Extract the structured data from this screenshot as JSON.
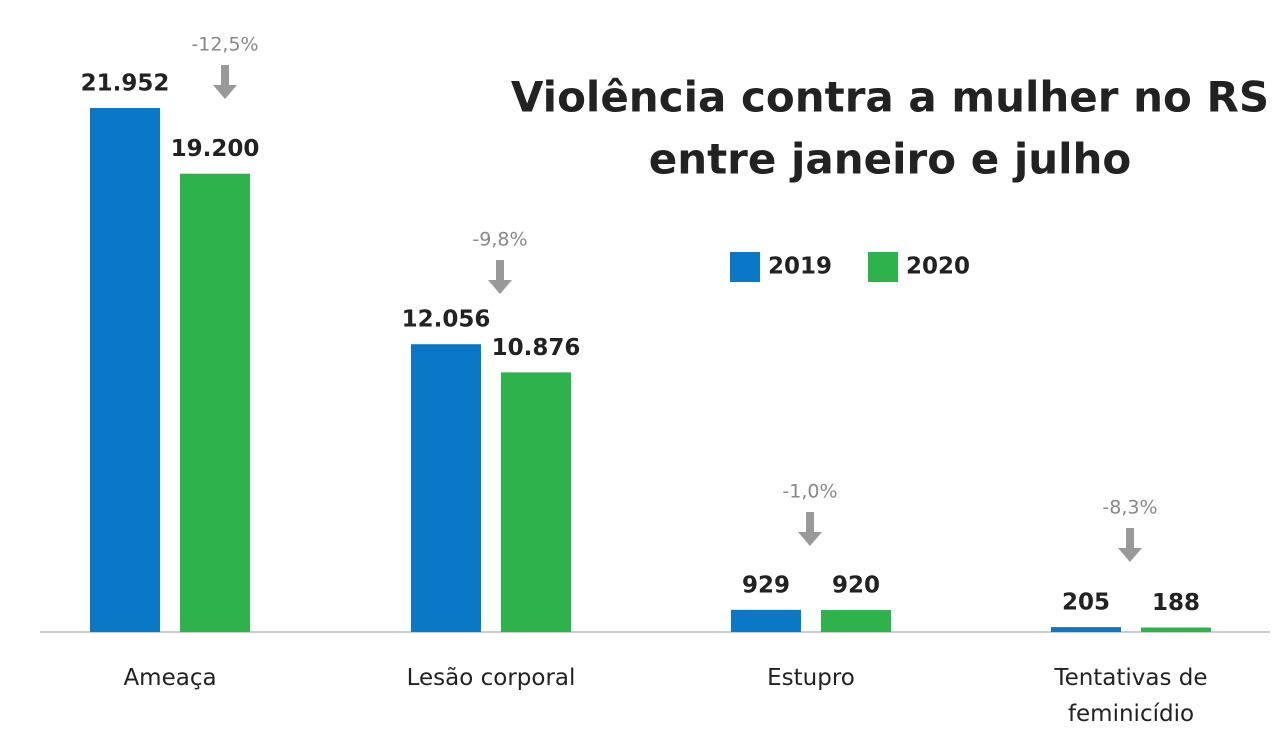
{
  "chart_data": {
    "type": "bar",
    "title": "Violência contra a mulher no RS",
    "subtitle": "entre janeiro e julho",
    "categories": [
      "Ameaça",
      "Lesão corporal",
      "Estupro",
      "Tentativas de feminicídio"
    ],
    "series": [
      {
        "name": "2019",
        "color": "#0a77c7",
        "values": [
          21952,
          12056,
          929,
          205
        ],
        "value_labels": [
          "21.952",
          "12.056",
          "929",
          "205"
        ]
      },
      {
        "name": "2020",
        "color": "#2eb24c",
        "values": [
          19200,
          10876,
          920,
          188
        ],
        "value_labels": [
          "19.200",
          "10.876",
          "920",
          "188"
        ]
      }
    ],
    "annotations": [
      "-12,5%",
      "-9,8%",
      "-1,0%",
      "-8,3%"
    ]
  }
}
